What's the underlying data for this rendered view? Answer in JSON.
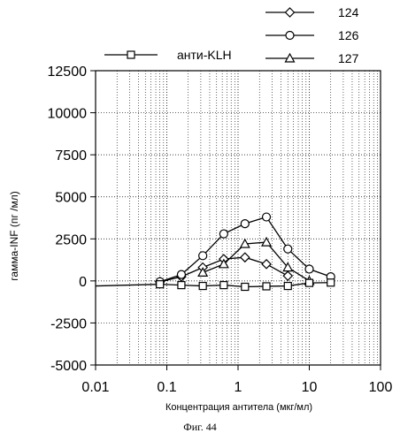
{
  "figure_caption": "Фиг. 44",
  "chart_data": {
    "type": "line",
    "xscale": "log",
    "xlim": [
      0.01,
      100
    ],
    "ylim": [
      -5000,
      12500
    ],
    "xlabel": "Концентрация антитела  (мкг/мл)",
    "ylabel": "гамма-INF (пг /мл)",
    "xticks": [
      0.01,
      0.1,
      1,
      10,
      100
    ],
    "xtick_labels": [
      "0.01",
      "0.1",
      "1",
      "10",
      "100"
    ],
    "yticks": [
      -5000,
      -2500,
      0,
      2500,
      5000,
      7500,
      10000,
      12500
    ],
    "ytick_labels": [
      "-5000",
      "-2500",
      "0",
      "2500",
      "5000",
      "7500",
      "10000",
      "12500"
    ],
    "grid": "dotted, log minor on x",
    "legend_position": "top",
    "series": [
      {
        "name": "124",
        "marker": "diamond",
        "x": [
          0.08,
          0.16,
          0.32,
          0.63,
          1.25,
          2.5,
          5
        ],
        "y": [
          -50,
          250,
          800,
          1300,
          1400,
          1000,
          300
        ]
      },
      {
        "name": "126",
        "marker": "circle",
        "x": [
          0.08,
          0.16,
          0.32,
          0.63,
          1.25,
          2.5,
          5,
          10,
          20
        ],
        "y": [
          -50,
          380,
          1500,
          2800,
          3400,
          3800,
          1900,
          700,
          250
        ]
      },
      {
        "name": "127",
        "marker": "triangle",
        "x": [
          0.32,
          0.63,
          1.25,
          2.5,
          5,
          10
        ],
        "y": [
          500,
          1000,
          2200,
          2300,
          800,
          0
        ]
      },
      {
        "name": "анти-KLH",
        "marker": "square",
        "x": [
          0.08,
          0.16,
          0.32,
          0.63,
          1.25,
          2.5,
          5,
          10,
          20
        ],
        "y": [
          -200,
          -250,
          -300,
          -250,
          -350,
          -320,
          -300,
          -120,
          -100
        ]
      }
    ],
    "lead_in": {
      "x": 0.01,
      "y": -300
    }
  }
}
